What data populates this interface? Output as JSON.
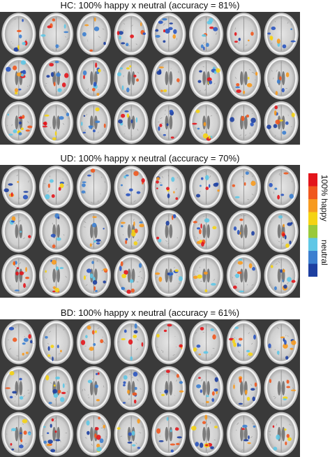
{
  "panels": [
    {
      "title": "HC: 100% happy x neutral (accuracy = 81%)"
    },
    {
      "title": "UD: 100% happy x neutral (accuracy = 70%)"
    },
    {
      "title": "BD: 100% happy x neutral (accuracy = 61%)"
    }
  ],
  "colorbar": {
    "top_label": "100% happy",
    "bottom_label": "neutral",
    "colors": [
      "#e3151b",
      "#f0581e",
      "#f79a1f",
      "#f5d313",
      "#9ac93b",
      "#5fc7e6",
      "#3c7fd0",
      "#1d3fa0"
    ]
  },
  "grid": {
    "rows_per_panel": 3,
    "cols": 8
  }
}
